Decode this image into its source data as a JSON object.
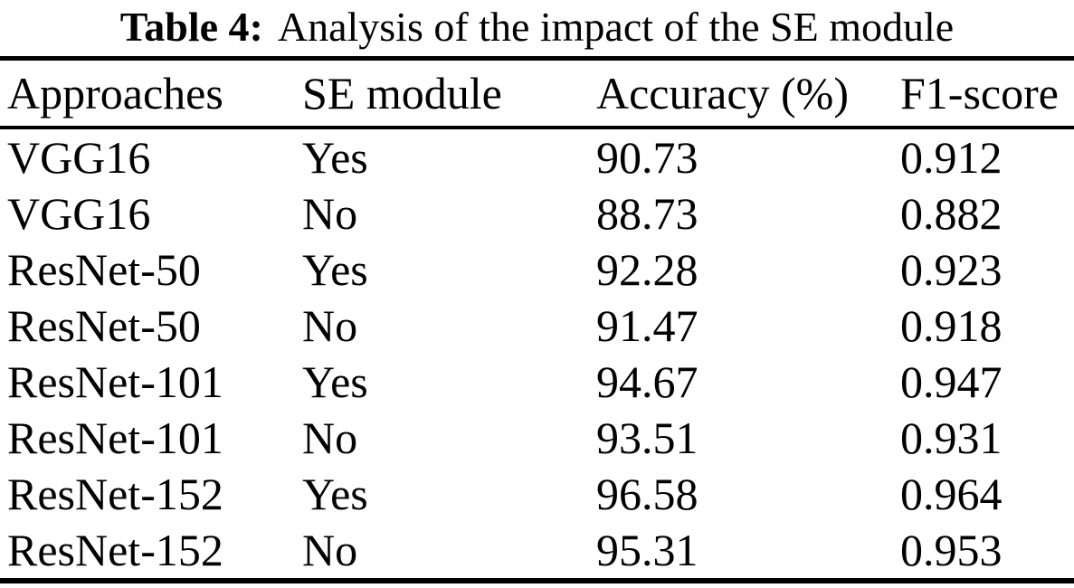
{
  "caption": {
    "label": "Table 4:",
    "text": "Analysis of the impact of the SE module"
  },
  "table": {
    "headers": [
      "Approaches",
      "SE module",
      "Accuracy (%)",
      "F1-score"
    ],
    "rows": [
      [
        "VGG16",
        "Yes",
        "90.73",
        "0.912"
      ],
      [
        "VGG16",
        "No",
        "88.73",
        "0.882"
      ],
      [
        "ResNet-50",
        "Yes",
        "92.28",
        "0.923"
      ],
      [
        "ResNet-50",
        "No",
        "91.47",
        "0.918"
      ],
      [
        "ResNet-101",
        "Yes",
        "94.67",
        "0.947"
      ],
      [
        "ResNet-101",
        "No",
        "93.51",
        "0.931"
      ],
      [
        "ResNet-152",
        "Yes",
        "96.58",
        "0.964"
      ],
      [
        "ResNet-152",
        "No",
        "95.31",
        "0.953"
      ]
    ]
  },
  "colors": {
    "text": "#000000",
    "background": "#ffffff",
    "rule": "#000000"
  }
}
